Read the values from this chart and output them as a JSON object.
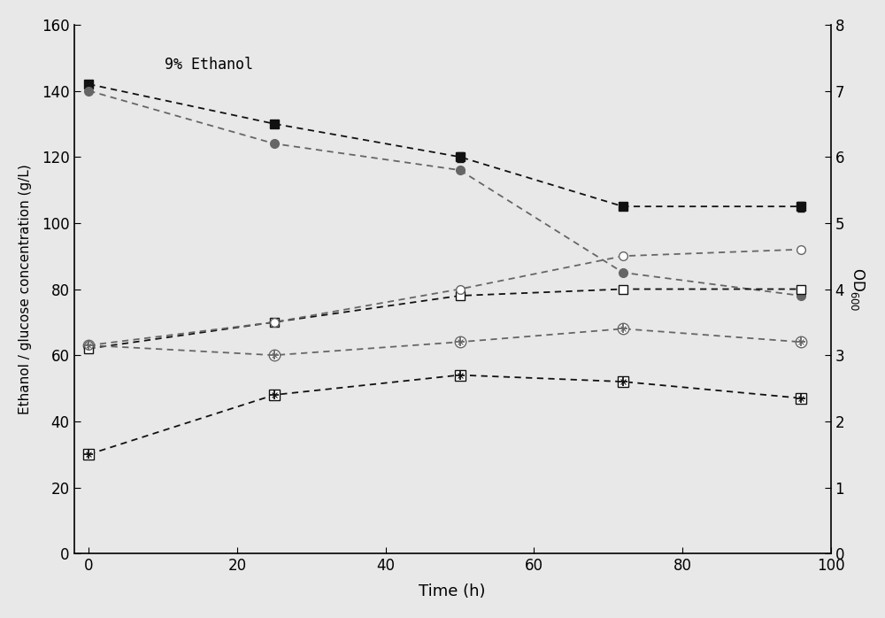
{
  "annotation": "9% Ethanol",
  "xlabel": "Time (h)",
  "ylabel_left": "Ethanol / glucose concentration (g/L)",
  "ylabel_right": "OD600",
  "xlim": [
    -2,
    100
  ],
  "ylim_left": [
    0,
    160
  ],
  "ylim_right": [
    0,
    8
  ],
  "xticks": [
    0,
    20,
    40,
    60,
    80,
    100
  ],
  "yticks_left": [
    0,
    20,
    40,
    60,
    80,
    100,
    120,
    140,
    160
  ],
  "yticks_right": [
    0,
    1,
    2,
    3,
    4,
    5,
    6,
    7,
    8
  ],
  "series": [
    {
      "name": "black_filled_square_glucose1",
      "x": [
        0,
        25,
        50,
        72,
        96
      ],
      "y": [
        142,
        130,
        120,
        105,
        105
      ],
      "color": "#111111",
      "linestyle": "--",
      "marker": "s",
      "markerfacecolor": "#111111",
      "markersize": 7,
      "linewidth": 1.3,
      "yerr": [
        0,
        0,
        1.5,
        0,
        1.5
      ]
    },
    {
      "name": "gray_filled_circle_glucose2",
      "x": [
        0,
        25,
        50,
        72,
        96
      ],
      "y": [
        140,
        124,
        116,
        85,
        78
      ],
      "color": "#666666",
      "linestyle": "--",
      "marker": "o",
      "markerfacecolor": "#666666",
      "markersize": 7,
      "linewidth": 1.3,
      "yerr": [
        0,
        0,
        0,
        0,
        0
      ]
    },
    {
      "name": "black_open_square_ethanol1",
      "x": [
        0,
        25,
        50,
        72,
        96
      ],
      "y": [
        62,
        70,
        78,
        80,
        80
      ],
      "color": "#111111",
      "linestyle": "--",
      "marker": "s",
      "markerfacecolor": "white",
      "markersize": 7,
      "linewidth": 1.3,
      "yerr": [
        0,
        0,
        0,
        0,
        0
      ]
    },
    {
      "name": "gray_open_circle_ethanol2",
      "x": [
        0,
        25,
        50,
        72,
        96
      ],
      "y": [
        63,
        70,
        80,
        90,
        92
      ],
      "color": "#666666",
      "linestyle": "--",
      "marker": "o",
      "markerfacecolor": "white",
      "markersize": 7,
      "linewidth": 1.3,
      "yerr": [
        0,
        0,
        0,
        0,
        0
      ]
    },
    {
      "name": "black_hatch_square_od1",
      "x": [
        0,
        25,
        50,
        72,
        96
      ],
      "y": [
        30,
        48,
        54,
        52,
        47
      ],
      "color": "#111111",
      "linestyle": "--",
      "marker": "hatch_square",
      "markersize": 8,
      "linewidth": 1.3,
      "yerr": [
        0,
        0,
        0,
        0,
        0
      ]
    },
    {
      "name": "gray_hatch_circle_od2",
      "x": [
        0,
        25,
        50,
        72,
        96
      ],
      "y": [
        63,
        60,
        64,
        68,
        64
      ],
      "color": "#666666",
      "linestyle": "--",
      "marker": "hatch_circle",
      "markersize": 8,
      "linewidth": 1.3,
      "yerr": [
        0,
        0,
        0,
        0,
        0
      ]
    }
  ]
}
